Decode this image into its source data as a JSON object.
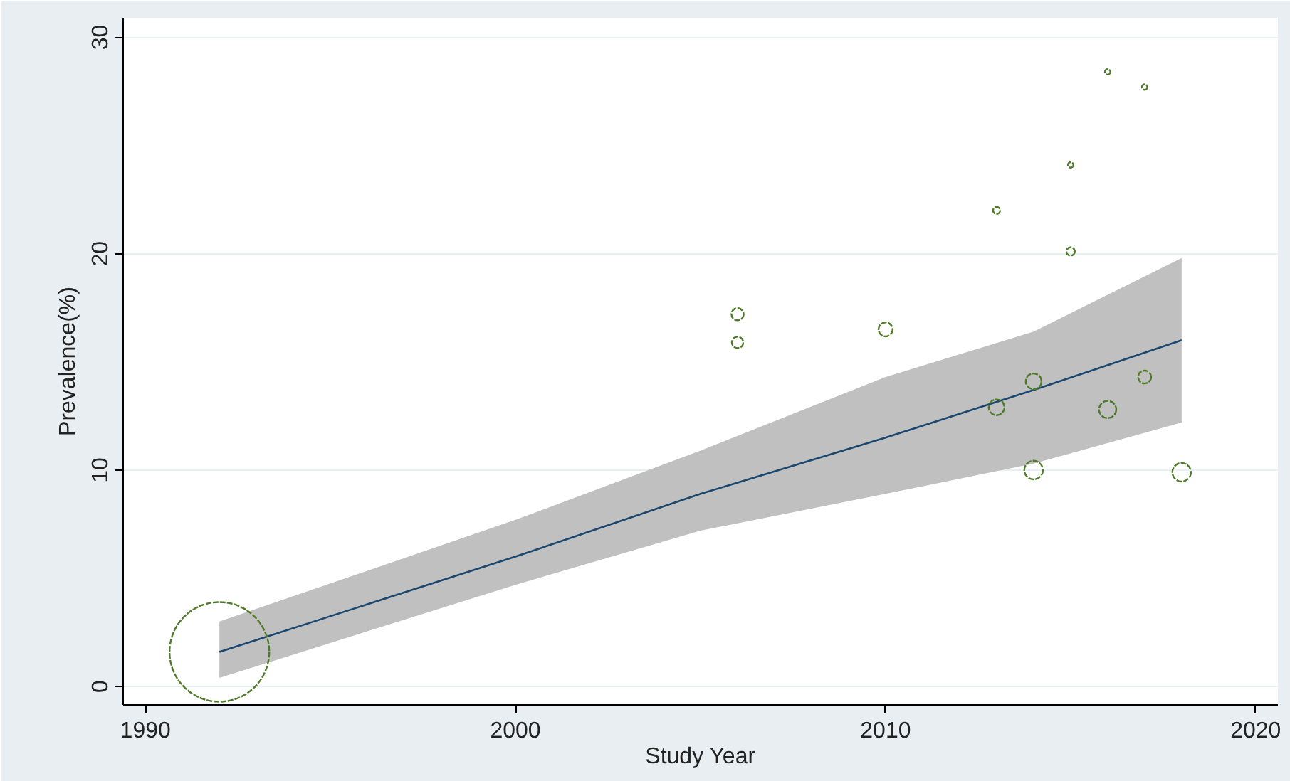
{
  "chart_data": {
    "type": "bubble",
    "xlabel": "Study Year",
    "ylabel": "Prevalence(%)",
    "xlim": [
      1989.4,
      2020.6
    ],
    "ylim": [
      -0.85,
      30.9
    ],
    "xticks": [
      1990,
      2000,
      2010,
      2020
    ],
    "yticks": [
      0,
      10,
      20,
      30
    ],
    "grid": "y",
    "series": [
      {
        "color": "#4f7a28",
        "x": [
          1992,
          2006,
          2006,
          2010,
          2013,
          2013,
          2014,
          2014,
          2015,
          2015,
          2016,
          2016,
          2017,
          2017,
          2018
        ],
        "values": [
          1.6,
          17.2,
          15.9,
          16.5,
          22.0,
          12.9,
          14.1,
          10.0,
          24.1,
          20.1,
          28.4,
          12.8,
          27.7,
          14.3,
          9.9
        ],
        "sizes": [
          1,
          0.015,
          0.013,
          0.02,
          0.005,
          0.025,
          0.025,
          0.035,
          0.003,
          0.007,
          0.003,
          0.03,
          0.003,
          0.017,
          0.035
        ]
      },
      {
        "type": "line",
        "color": "#1a476f",
        "x": [
          1992,
          2000,
          2005,
          2010,
          2014,
          2018
        ],
        "values": [
          1.6,
          6.0,
          8.9,
          11.5,
          13.7,
          16.0
        ],
        "lower": [
          0.4,
          4.7,
          7.2,
          8.9,
          10.3,
          12.2
        ],
        "upper": [
          3.0,
          7.7,
          10.9,
          14.3,
          16.4,
          19.8
        ]
      }
    ]
  }
}
